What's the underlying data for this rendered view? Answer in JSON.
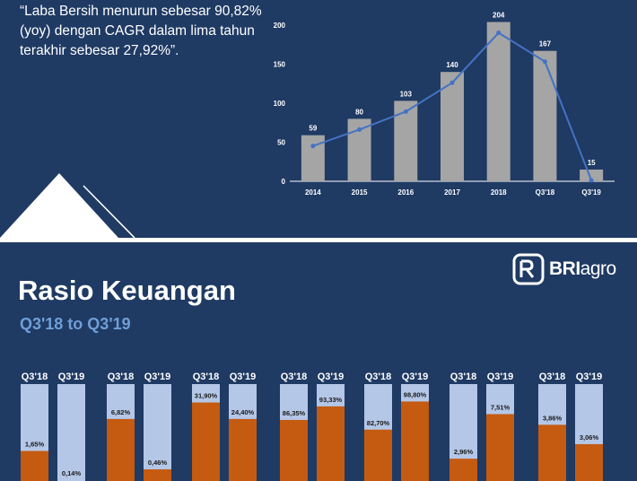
{
  "quote": "“Laba Bersih menurun sebesar 90,82% (yoy) dengan CAGR dalam lima tahun terakhir sebesar 27,92%”.",
  "chart_data": [
    {
      "type": "bar",
      "categories": [
        "2014",
        "2015",
        "2016",
        "2017",
        "2018",
        "Q3'18",
        "Q3'19"
      ],
      "values": [
        59,
        80,
        103,
        140,
        204,
        167,
        15
      ],
      "data_labels": [
        "59",
        "80",
        "103",
        "140",
        "204",
        "167",
        "15"
      ],
      "line_overlay": true,
      "yticks": [
        "0",
        "50",
        "100",
        "150",
        "200"
      ],
      "ylim": [
        0,
        210
      ],
      "colors": {
        "bar": "#a5a5a5",
        "line": "#4472c4",
        "text": "#ffffff"
      }
    },
    {
      "type": "bar",
      "groups": [
        {
          "labels": [
            "Q3'18",
            "Q3'19"
          ],
          "values": [
            1.65,
            0.14
          ],
          "data_labels": [
            "1,65%",
            "0,14%"
          ],
          "fill": [
            0.31,
            0.0
          ]
        },
        {
          "labels": [
            "Q3'18",
            "Q3'19"
          ],
          "values": [
            6.82,
            0.46
          ],
          "data_labels": [
            "6,82%",
            "0,46%"
          ],
          "fill": [
            0.64,
            0.12
          ]
        },
        {
          "labels": [
            "Q3'18",
            "Q3'19"
          ],
          "values": [
            31.9,
            24.4
          ],
          "data_labels": [
            "31,90%",
            "24,40%"
          ],
          "fill": [
            0.81,
            0.64
          ]
        },
        {
          "labels": [
            "Q3'18",
            "Q3'19"
          ],
          "values": [
            86.35,
            93.33
          ],
          "data_labels": [
            "86,35%",
            "93,33%"
          ],
          "fill": [
            0.63,
            0.77
          ]
        },
        {
          "labels": [
            "Q3'18",
            "Q3'19"
          ],
          "values": [
            82.7,
            98.8
          ],
          "data_labels": [
            "82,70%",
            "98,80%"
          ],
          "fill": [
            0.53,
            0.82
          ]
        },
        {
          "labels": [
            "Q3'18",
            "Q3'19"
          ],
          "values": [
            2.96,
            7.51
          ],
          "data_labels": [
            "2,96%",
            "7,51%"
          ],
          "fill": [
            0.23,
            0.69
          ]
        },
        {
          "labels": [
            "Q3'18",
            "Q3'19"
          ],
          "values": [
            3.86,
            3.06
          ],
          "data_labels": [
            "3,86%",
            "3,06%"
          ],
          "fill": [
            0.58,
            0.38
          ]
        }
      ],
      "colors": {
        "bg": "#b4c7e7",
        "fill": "#c55a11",
        "label": "#ffffff"
      }
    }
  ],
  "section": {
    "title": "Rasio Keuangan",
    "subtitle": "Q3'18 to Q3'19"
  },
  "logo": {
    "icon": "bri-logo-icon",
    "text_bold": "BRI",
    "text_light": "agro"
  }
}
